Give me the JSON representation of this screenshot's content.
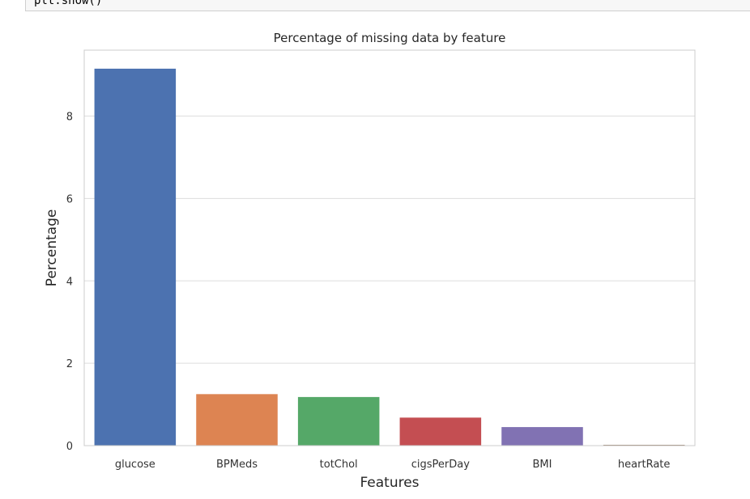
{
  "code_cell": {
    "text": "plt.show()"
  },
  "chart_data": {
    "type": "bar",
    "title": "Percentage of missing data by feature",
    "xlabel": "Features",
    "ylabel": "Percentage",
    "categories": [
      "glucose",
      "BPMeds",
      "totChol",
      "cigsPerDay",
      "BMI",
      "heartRate"
    ],
    "values": [
      9.15,
      1.25,
      1.18,
      0.68,
      0.45,
      0.02
    ],
    "colors": [
      "#4c72b0",
      "#dd8452",
      "#55a868",
      "#c44e52",
      "#8172b3",
      "#937860"
    ],
    "ylim": [
      0,
      9.6
    ],
    "yticks": [
      0,
      2,
      4,
      6,
      8
    ],
    "grid": true,
    "grid_color": "#dddddd",
    "legend": "none"
  }
}
